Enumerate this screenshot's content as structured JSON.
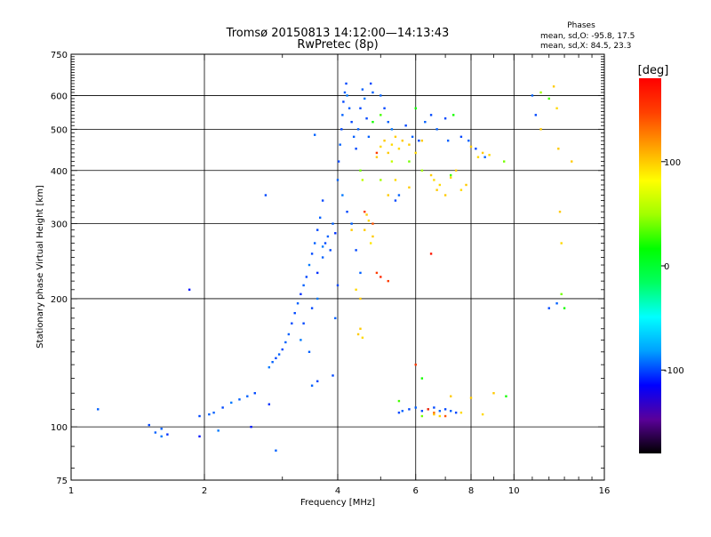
{
  "chart_data": {
    "type": "scatter",
    "title": "Tromsø 20150813 14:12:00—14:13:43",
    "subtitle": "RwPretec (8p)",
    "xlabel": "Frequency [MHz]",
    "ylabel": "Stationary phase Virtual Height [km]",
    "xscale": "log",
    "yscale": "log",
    "xlim": [
      1,
      16
    ],
    "ylim": [
      75,
      750
    ],
    "xticks": [
      1,
      2,
      4,
      6,
      8,
      10,
      16
    ],
    "yticks": [
      75,
      100,
      200,
      300,
      400,
      500,
      600,
      750
    ],
    "grid": true,
    "phase_stats": {
      "title": "Phases",
      "line_o": "mean, sd,O: -95.8, 17.5",
      "line_x": "mean, sd,X: 84.5, 23.3"
    },
    "colorbar": {
      "label": "[deg]",
      "min": -180,
      "max": 180,
      "ticks": [
        100,
        0,
        -100
      ],
      "colors": [
        "#000000",
        "#5a009a",
        "#0000ff",
        "#00a0ff",
        "#00ffff",
        "#00ff60",
        "#00ff00",
        "#a0ff00",
        "#ffff00",
        "#ffa000",
        "#ff4000",
        "#ff0000"
      ]
    },
    "series": [
      {
        "points": [
          [
            1.15,
            110,
            -95
          ],
          [
            1.5,
            101,
            -100
          ],
          [
            1.55,
            97,
            -95
          ],
          [
            1.6,
            95,
            -90
          ],
          [
            1.65,
            96,
            -105
          ],
          [
            1.6,
            99,
            -95
          ],
          [
            1.85,
            210,
            -110
          ],
          [
            1.95,
            106,
            -100
          ],
          [
            1.95,
            95,
            -110
          ],
          [
            2.05,
            107,
            -95
          ],
          [
            2.1,
            108,
            -95
          ],
          [
            2.2,
            111,
            -100
          ],
          [
            2.3,
            114,
            -90
          ],
          [
            2.4,
            116,
            -95
          ],
          [
            2.5,
            118,
            -95
          ],
          [
            2.6,
            120,
            -100
          ],
          [
            2.15,
            98,
            -90
          ],
          [
            2.55,
            100,
            -110
          ],
          [
            2.75,
            350,
            -100
          ],
          [
            2.8,
            138,
            -90
          ],
          [
            2.85,
            142,
            -95
          ],
          [
            2.9,
            145,
            -100
          ],
          [
            2.95,
            148,
            -95
          ],
          [
            3.0,
            152,
            -100
          ],
          [
            3.05,
            158,
            -95
          ],
          [
            2.8,
            113,
            -105
          ],
          [
            2.9,
            88,
            -95
          ],
          [
            3.1,
            165,
            -95
          ],
          [
            3.15,
            175,
            -100
          ],
          [
            3.2,
            185,
            -100
          ],
          [
            3.25,
            195,
            -95
          ],
          [
            3.3,
            205,
            -105
          ],
          [
            3.35,
            215,
            -95
          ],
          [
            3.4,
            225,
            -100
          ],
          [
            3.45,
            240,
            -90
          ],
          [
            3.5,
            255,
            -100
          ],
          [
            3.55,
            270,
            -95
          ],
          [
            3.6,
            290,
            -100
          ],
          [
            3.65,
            310,
            -95
          ],
          [
            3.7,
            340,
            -100
          ],
          [
            3.3,
            160,
            -90
          ],
          [
            3.35,
            175,
            -100
          ],
          [
            3.45,
            150,
            -95
          ],
          [
            3.5,
            190,
            -100
          ],
          [
            3.6,
            200,
            -90
          ],
          [
            3.6,
            230,
            -105
          ],
          [
            3.7,
            250,
            -95
          ],
          [
            3.75,
            270,
            -100
          ],
          [
            3.8,
            280,
            -95
          ],
          [
            3.85,
            260,
            -100
          ],
          [
            3.9,
            300,
            -95
          ],
          [
            3.95,
            285,
            -105
          ],
          [
            3.5,
            125,
            -95
          ],
          [
            3.6,
            128,
            -100
          ],
          [
            3.55,
            485,
            -95
          ],
          [
            3.7,
            265,
            -90
          ],
          [
            4.0,
            380,
            -95
          ],
          [
            4.02,
            420,
            -100
          ],
          [
            4.05,
            460,
            -95
          ],
          [
            4.08,
            500,
            -100
          ],
          [
            4.1,
            540,
            -95
          ],
          [
            4.12,
            580,
            -100
          ],
          [
            4.15,
            610,
            -95
          ],
          [
            4.18,
            640,
            -100
          ],
          [
            4.2,
            600,
            -90
          ],
          [
            4.25,
            560,
            -95
          ],
          [
            4.3,
            520,
            -100
          ],
          [
            4.35,
            480,
            -95
          ],
          [
            4.4,
            450,
            -100
          ],
          [
            4.45,
            500,
            -95
          ],
          [
            4.5,
            560,
            -100
          ],
          [
            4.55,
            620,
            -95
          ],
          [
            4.6,
            590,
            -90
          ],
          [
            4.65,
            530,
            -100
          ],
          [
            4.7,
            480,
            -95
          ],
          [
            4.75,
            640,
            -100
          ],
          [
            4.8,
            610,
            -95
          ],
          [
            4.3,
            300,
            -95
          ],
          [
            4.4,
            260,
            -100
          ],
          [
            4.5,
            230,
            -95
          ],
          [
            4.1,
            350,
            -90
          ],
          [
            4.2,
            320,
            -100
          ],
          [
            5.0,
            600,
            -95
          ],
          [
            5.1,
            560,
            -100
          ],
          [
            5.2,
            520,
            -95
          ],
          [
            5.3,
            500,
            -90
          ],
          [
            5.4,
            340,
            -100
          ],
          [
            5.5,
            350,
            -95
          ],
          [
            5.7,
            510,
            -100
          ],
          [
            5.9,
            480,
            -95
          ],
          [
            6.1,
            470,
            -100
          ],
          [
            6.3,
            520,
            -95
          ],
          [
            6.5,
            540,
            -100
          ],
          [
            6.7,
            500,
            -95
          ],
          [
            7.0,
            530,
            -100
          ],
          [
            7.1,
            470,
            -95
          ],
          [
            7.6,
            480,
            -100
          ],
          [
            7.9,
            470,
            -95
          ],
          [
            8.2,
            450,
            -100
          ],
          [
            8.6,
            430,
            -95
          ],
          [
            11.0,
            600,
            -95
          ],
          [
            11.2,
            540,
            -100
          ],
          [
            12.5,
            195,
            -95
          ],
          [
            12.0,
            190,
            -100
          ],
          [
            5.5,
            108,
            -100
          ],
          [
            5.6,
            109,
            -95
          ],
          [
            5.8,
            110,
            -100
          ],
          [
            6.0,
            111,
            -95
          ],
          [
            6.2,
            109,
            -100
          ],
          [
            6.4,
            110,
            -95
          ],
          [
            6.6,
            111,
            -100
          ],
          [
            6.8,
            109,
            -95
          ],
          [
            7.0,
            110,
            -100
          ],
          [
            7.2,
            109,
            -95
          ],
          [
            7.4,
            108,
            -100
          ],
          [
            3.9,
            132,
            -100
          ],
          [
            3.95,
            180,
            -95
          ],
          [
            4.0,
            215,
            -100
          ]
        ]
      },
      {
        "points": [
          [
            4.45,
            165,
            100
          ],
          [
            4.5,
            170,
            100
          ],
          [
            4.55,
            162,
            95
          ],
          [
            4.5,
            200,
            100
          ],
          [
            4.6,
            290,
            100
          ],
          [
            4.7,
            305,
            95
          ],
          [
            4.8,
            280,
            100
          ],
          [
            4.75,
            270,
            90
          ],
          [
            4.65,
            315,
            100
          ],
          [
            4.9,
            430,
            100
          ],
          [
            5.0,
            455,
            95
          ],
          [
            5.1,
            470,
            100
          ],
          [
            5.2,
            440,
            100
          ],
          [
            5.3,
            460,
            95
          ],
          [
            5.4,
            480,
            100
          ],
          [
            5.5,
            450,
            95
          ],
          [
            5.6,
            470,
            100
          ],
          [
            5.8,
            460,
            100
          ],
          [
            6.0,
            440,
            95
          ],
          [
            6.2,
            470,
            100
          ],
          [
            6.5,
            390,
            100
          ],
          [
            6.6,
            380,
            95
          ],
          [
            6.7,
            360,
            100
          ],
          [
            6.8,
            370,
            95
          ],
          [
            7.0,
            350,
            100
          ],
          [
            7.2,
            385,
            95
          ],
          [
            7.4,
            400,
            100
          ],
          [
            7.6,
            360,
            95
          ],
          [
            7.8,
            370,
            100
          ],
          [
            8.0,
            455,
            100
          ],
          [
            8.3,
            430,
            95
          ],
          [
            8.5,
            440,
            100
          ],
          [
            8.8,
            435,
            95
          ],
          [
            5.2,
            350,
            100
          ],
          [
            5.4,
            380,
            95
          ],
          [
            5.8,
            365,
            100
          ],
          [
            6.6,
            107,
            100
          ],
          [
            6.8,
            106,
            95
          ],
          [
            7.2,
            118,
            100
          ],
          [
            7.6,
            108,
            95
          ],
          [
            8.0,
            117,
            100
          ],
          [
            8.5,
            107,
            95
          ],
          [
            9.0,
            120,
            100
          ],
          [
            12.3,
            630,
            100
          ],
          [
            12.5,
            560,
            95
          ],
          [
            12.6,
            450,
            100
          ],
          [
            12.7,
            320,
            100
          ],
          [
            12.8,
            270,
            95
          ],
          [
            13.5,
            420,
            100
          ],
          [
            11.5,
            500,
            100
          ],
          [
            4.4,
            210,
            95
          ],
          [
            4.3,
            290,
            100
          ]
        ]
      },
      {
        "points": [
          [
            4.5,
            400,
            40
          ],
          [
            4.55,
            380,
            60
          ],
          [
            4.8,
            520,
            20
          ],
          [
            5.0,
            540,
            30
          ],
          [
            5.3,
            420,
            60
          ],
          [
            5.8,
            420,
            40
          ],
          [
            6.0,
            560,
            20
          ],
          [
            6.2,
            400,
            50
          ],
          [
            7.2,
            390,
            30
          ],
          [
            7.3,
            540,
            20
          ],
          [
            9.5,
            420,
            40
          ],
          [
            11.5,
            610,
            50
          ],
          [
            12.0,
            590,
            30
          ],
          [
            13.0,
            190,
            20
          ],
          [
            12.8,
            205,
            40
          ],
          [
            6.2,
            130,
            20
          ],
          [
            5.5,
            115,
            30
          ],
          [
            6.2,
            106,
            40
          ],
          [
            9.6,
            118,
            20
          ],
          [
            5.0,
            380,
            50
          ]
        ]
      },
      {
        "points": [
          [
            4.6,
            320,
            150
          ],
          [
            4.8,
            300,
            140
          ],
          [
            4.9,
            230,
            150
          ],
          [
            5.0,
            225,
            160
          ],
          [
            5.2,
            220,
            150
          ],
          [
            6.5,
            255,
            170
          ],
          [
            6.0,
            140,
            150
          ],
          [
            6.6,
            108,
            130
          ],
          [
            7.0,
            106,
            140
          ],
          [
            6.4,
            110,
            160
          ],
          [
            4.9,
            440,
            150
          ]
        ]
      }
    ]
  }
}
